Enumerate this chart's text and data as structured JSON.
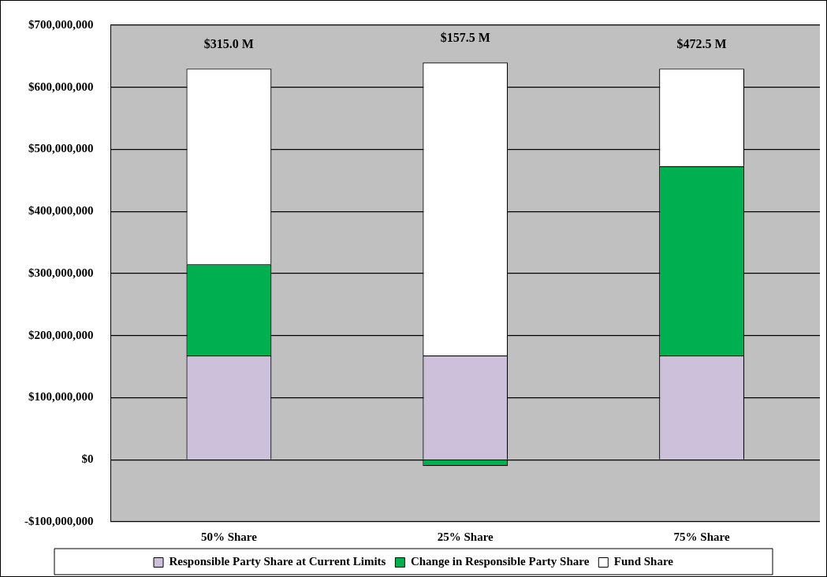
{
  "chart_data": {
    "type": "bar",
    "stacked": true,
    "categories": [
      "50% Share",
      "25% Share",
      "75% Share"
    ],
    "series": [
      {
        "name": "Responsible Party Share at Current Limits",
        "color": "#ccc0da",
        "values": [
          168000000,
          168000000,
          168000000
        ]
      },
      {
        "name": "Change in Responsible Party Share",
        "color": "#00b050",
        "values": [
          147000000,
          -10000000,
          305000000
        ]
      },
      {
        "name": "Fund Share",
        "color": "#ffffff",
        "values": [
          315000000,
          472000000,
          157000000
        ]
      }
    ],
    "ylim": [
      -100000000,
      700000000
    ],
    "yticks": [
      {
        "value": -100000000,
        "label": "-$100,000,000"
      },
      {
        "value": 0,
        "label": "$0"
      },
      {
        "value": 100000000,
        "label": "$100,000,000"
      },
      {
        "value": 200000000,
        "label": "$200,000,000"
      },
      {
        "value": 300000000,
        "label": "$300,000,000"
      },
      {
        "value": 400000000,
        "label": "$400,000,000"
      },
      {
        "value": 500000000,
        "label": "$500,000,000"
      },
      {
        "value": 600000000,
        "label": "$600,000,000"
      },
      {
        "value": 700000000,
        "label": "$700,000,000"
      }
    ],
    "grid": "y",
    "legend": "bottom",
    "annotations": [
      {
        "text": "$315.0 M",
        "x": "50% Share",
        "y": 630000000
      },
      {
        "text": "$157.5 M",
        "x": "25% Share",
        "y": 640000000
      },
      {
        "text": "$472.5 M",
        "x": "75% Share",
        "y": 630000000
      }
    ]
  }
}
